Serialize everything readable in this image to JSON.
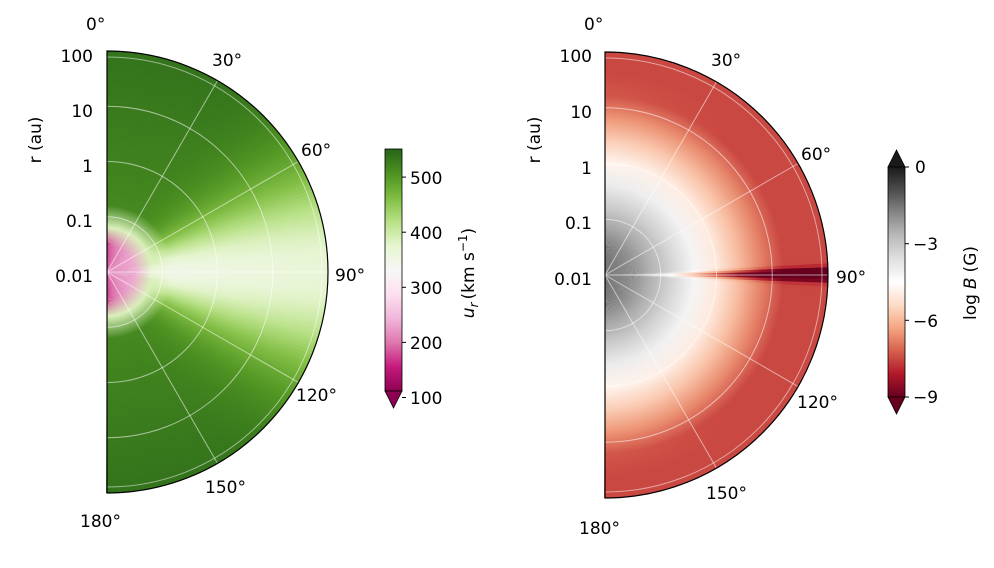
{
  "chart_data": [
    {
      "type": "heatmap",
      "projection": "polar (half-disk)",
      "radial_label": "r (au)",
      "radial_ticks": [
        "0.01",
        "0.1",
        "1",
        "10",
        "100"
      ],
      "radial_scale": "log",
      "angle_ticks": [
        "0°",
        "30°",
        "60°",
        "90°",
        "120°",
        "150°",
        "180°"
      ],
      "colorbar": {
        "label": "u_r (km s⁻¹)",
        "label_main": "u",
        "label_sub": "r",
        "label_unit": "(km s",
        "label_sup": "−1",
        "label_close": ")",
        "ticks": [
          "100",
          "200",
          "300",
          "400",
          "500"
        ],
        "range": [
          90,
          550
        ],
        "extend": "min",
        "colormap": "PiYG"
      },
      "grid": true
    },
    {
      "type": "heatmap",
      "projection": "polar (half-disk)",
      "radial_label": "r (au)",
      "radial_ticks": [
        "0.01",
        "0.1",
        "1",
        "10",
        "100"
      ],
      "radial_scale": "log",
      "angle_ticks": [
        "0°",
        "30°",
        "60°",
        "90°",
        "120°",
        "150°",
        "180°"
      ],
      "colorbar": {
        "label": "log B (G)",
        "label_main": "log",
        "label_var": "B",
        "label_unit": "(G)",
        "ticks": [
          "0",
          "−3",
          "−6",
          "−9"
        ],
        "range": [
          -9,
          0
        ],
        "extend": "both",
        "colormap": "RdGy"
      },
      "grid": true
    }
  ]
}
